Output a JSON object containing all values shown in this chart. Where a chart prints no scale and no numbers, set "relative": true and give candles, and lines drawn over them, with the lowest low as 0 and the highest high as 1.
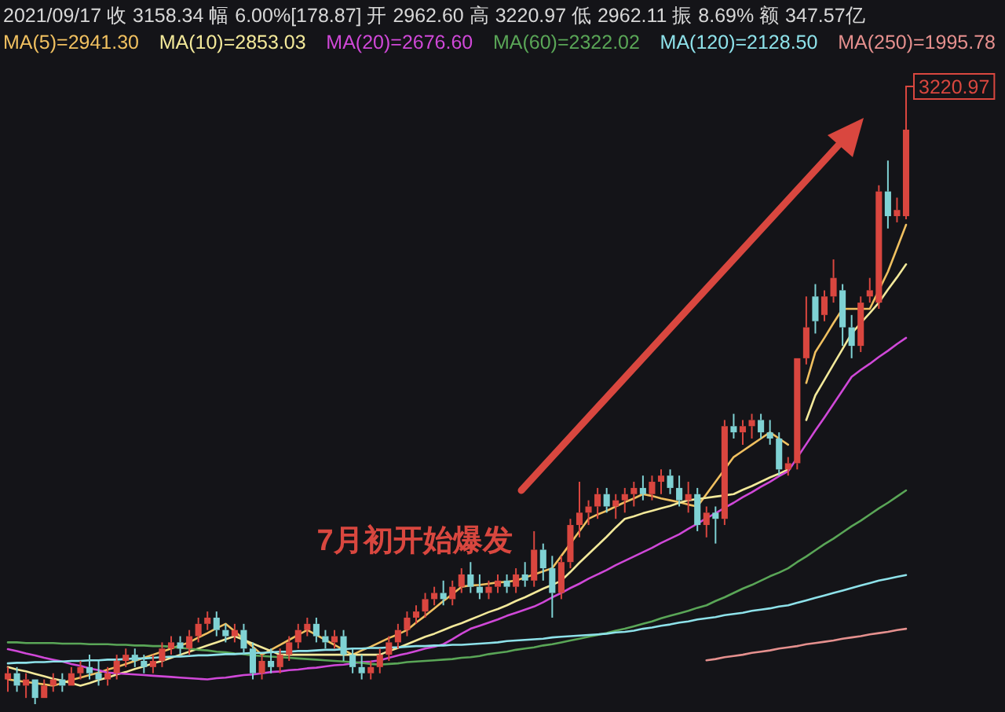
{
  "chart_data": {
    "type": "candlestick",
    "relative": true,
    "title": "2021/09/17 收 3158.34 幅 6.00%[178.87] 开 2962.60 高 3220.97 低 2962.11 振 8.69% 额 347.57亿",
    "annotations": [
      "7月初开始爆发",
      "3220.97"
    ],
    "categories": [
      null,
      null,
      null,
      null,
      null,
      null,
      null,
      null,
      null,
      null,
      null,
      null,
      null,
      null,
      null,
      null,
      null,
      null,
      null,
      null,
      null,
      null,
      null,
      null,
      null,
      null,
      null,
      null,
      null,
      null,
      null,
      null,
      null,
      null,
      null,
      null,
      null,
      null,
      null,
      null,
      null,
      null,
      null,
      null,
      null,
      null,
      null,
      null,
      null,
      null,
      null,
      null,
      null,
      null,
      null,
      null,
      null,
      null,
      null,
      null,
      null,
      null,
      null,
      null,
      null,
      null,
      null,
      null,
      null,
      null,
      null,
      null,
      null,
      null,
      null,
      null,
      null,
      null,
      null,
      null,
      null,
      null,
      null,
      null,
      null,
      null,
      null,
      null,
      null,
      null,
      null,
      null,
      null,
      null,
      null,
      null,
      null,
      null,
      null,
      null
    ],
    "ohlc": [
      [
        0.04,
        0.06,
        0.02,
        0.05
      ],
      [
        0.05,
        0.06,
        0.02,
        0.03
      ],
      [
        0.03,
        0.05,
        0.01,
        0.04
      ],
      [
        0.04,
        0.04,
        0,
        0.01
      ],
      [
        0.01,
        0.04,
        0.01,
        0.03
      ],
      [
        0.03,
        0.05,
        0.02,
        0.04
      ],
      [
        0.04,
        0.05,
        0.02,
        0.03
      ],
      [
        0.03,
        0.06,
        0.03,
        0.05
      ],
      [
        0.05,
        0.07,
        0.04,
        0.06
      ],
      [
        0.06,
        0.08,
        0.04,
        0.05
      ],
      [
        0.05,
        0.07,
        0.03,
        0.04
      ],
      [
        0.04,
        0.06,
        0.03,
        0.05
      ],
      [
        0.05,
        0.08,
        0.04,
        0.07
      ],
      [
        0.07,
        0.09,
        0.06,
        0.08
      ],
      [
        0.08,
        0.09,
        0.06,
        0.07
      ],
      [
        0.07,
        0.08,
        0.05,
        0.06
      ],
      [
        0.06,
        0.08,
        0.05,
        0.07
      ],
      [
        0.07,
        0.1,
        0.06,
        0.09
      ],
      [
        0.09,
        0.11,
        0.08,
        0.1
      ],
      [
        0.1,
        0.11,
        0.08,
        0.09
      ],
      [
        0.09,
        0.12,
        0.08,
        0.11
      ],
      [
        0.11,
        0.14,
        0.1,
        0.13
      ],
      [
        0.13,
        0.15,
        0.12,
        0.14
      ],
      [
        0.14,
        0.15,
        0.11,
        0.12
      ],
      [
        0.12,
        0.13,
        0.1,
        0.11
      ],
      [
        0.11,
        0.13,
        0.1,
        0.12
      ],
      [
        0.12,
        0.13,
        0.08,
        0.09
      ],
      [
        0.09,
        0.1,
        0.04,
        0.05
      ],
      [
        0.05,
        0.08,
        0.04,
        0.07
      ],
      [
        0.07,
        0.09,
        0.05,
        0.06
      ],
      [
        0.06,
        0.09,
        0.05,
        0.08
      ],
      [
        0.08,
        0.11,
        0.07,
        0.1
      ],
      [
        0.1,
        0.13,
        0.09,
        0.12
      ],
      [
        0.12,
        0.14,
        0.11,
        0.13
      ],
      [
        0.13,
        0.14,
        0.1,
        0.11
      ],
      [
        0.11,
        0.12,
        0.09,
        0.1
      ],
      [
        0.1,
        0.12,
        0.09,
        0.11
      ],
      [
        0.11,
        0.12,
        0.07,
        0.08
      ],
      [
        0.08,
        0.09,
        0.05,
        0.06
      ],
      [
        0.06,
        0.08,
        0.04,
        0.05
      ],
      [
        0.05,
        0.07,
        0.04,
        0.06
      ],
      [
        0.06,
        0.09,
        0.05,
        0.08
      ],
      [
        0.08,
        0.11,
        0.07,
        0.1
      ],
      [
        0.1,
        0.13,
        0.09,
        0.12
      ],
      [
        0.12,
        0.15,
        0.11,
        0.14
      ],
      [
        0.14,
        0.16,
        0.13,
        0.15
      ],
      [
        0.15,
        0.18,
        0.14,
        0.17
      ],
      [
        0.17,
        0.19,
        0.16,
        0.18
      ],
      [
        0.18,
        0.2,
        0.16,
        0.17
      ],
      [
        0.17,
        0.2,
        0.16,
        0.19
      ],
      [
        0.19,
        0.22,
        0.18,
        0.21
      ],
      [
        0.21,
        0.23,
        0.18,
        0.19
      ],
      [
        0.19,
        0.21,
        0.17,
        0.18
      ],
      [
        0.18,
        0.2,
        0.17,
        0.19
      ],
      [
        0.19,
        0.21,
        0.18,
        0.2
      ],
      [
        0.2,
        0.21,
        0.18,
        0.19
      ],
      [
        0.19,
        0.22,
        0.18,
        0.21
      ],
      [
        0.21,
        0.23,
        0.19,
        0.2
      ],
      [
        0.2,
        0.28,
        0.19,
        0.25
      ],
      [
        0.25,
        0.26,
        0.2,
        0.22
      ],
      [
        0.22,
        0.24,
        0.14,
        0.18
      ],
      [
        0.18,
        0.24,
        0.17,
        0.23
      ],
      [
        0.23,
        0.3,
        0.22,
        0.29
      ],
      [
        0.29,
        0.36,
        0.27,
        0.31
      ],
      [
        0.31,
        0.33,
        0.29,
        0.32
      ],
      [
        0.32,
        0.35,
        0.3,
        0.34
      ],
      [
        0.34,
        0.35,
        0.31,
        0.32
      ],
      [
        0.32,
        0.34,
        0.3,
        0.33
      ],
      [
        0.33,
        0.35,
        0.31,
        0.34
      ],
      [
        0.34,
        0.36,
        0.32,
        0.35
      ],
      [
        0.35,
        0.37,
        0.33,
        0.34
      ],
      [
        0.34,
        0.37,
        0.33,
        0.36
      ],
      [
        0.36,
        0.38,
        0.34,
        0.37
      ],
      [
        0.37,
        0.38,
        0.34,
        0.35
      ],
      [
        0.35,
        0.37,
        0.32,
        0.33
      ],
      [
        0.33,
        0.36,
        0.31,
        0.34
      ],
      [
        0.34,
        0.35,
        0.28,
        0.29
      ],
      [
        0.29,
        0.32,
        0.27,
        0.31
      ],
      [
        0.31,
        0.32,
        0.26,
        0.3
      ],
      [
        0.3,
        0.46,
        0.29,
        0.45
      ],
      [
        0.45,
        0.47,
        0.43,
        0.44
      ],
      [
        0.44,
        0.46,
        0.42,
        0.45
      ],
      [
        0.45,
        0.47,
        0.43,
        0.46
      ],
      [
        0.46,
        0.47,
        0.43,
        0.44
      ],
      [
        0.44,
        0.46,
        0.42,
        0.43
      ],
      [
        0.43,
        0.44,
        0.37,
        0.38
      ],
      [
        0.38,
        0.4,
        0.37,
        0.39
      ],
      [
        0.39,
        0.56,
        0.38,
        0.56
      ],
      [
        0.56,
        0.66,
        0.55,
        0.61
      ],
      [
        0.66,
        0.68,
        0.6,
        0.62
      ],
      [
        0.63,
        0.67,
        0.62,
        0.66
      ],
      [
        0.66,
        0.72,
        0.65,
        0.69
      ],
      [
        0.67,
        0.68,
        0.58,
        0.61
      ],
      [
        0.61,
        0.63,
        0.56,
        0.58
      ],
      [
        0.58,
        0.66,
        0.57,
        0.65
      ],
      [
        0.66,
        0.69,
        0.65,
        0.67
      ],
      [
        0.65,
        0.84,
        0.64,
        0.83
      ],
      [
        0.83,
        0.88,
        0.77,
        0.79
      ],
      [
        0.79,
        0.82,
        0.78,
        0.8
      ],
      [
        0.79,
        1,
        0.785,
        0.93
      ]
    ],
    "series": [
      {
        "type": "line",
        "name": "MA(5)=2941.30",
        "color": "#f0c060",
        "values": [
          0.04,
          0.038,
          0.036,
          0.034,
          0.032,
          0.03,
          0.034,
          0.039,
          0.043,
          0.047,
          0.051,
          0.056,
          0.06,
          0.065,
          0.07,
          0.075,
          0.08,
          0.085,
          0.09,
          0.095,
          0.1,
          0.108,
          0.115,
          0.123,
          0.13,
          0.118,
          0.105,
          0.093,
          0.08,
          0.088,
          0.096,
          0.104,
          0.112,
          0.12,
          0.112,
          0.104,
          0.096,
          0.088,
          0.08,
          0.087,
          0.093,
          0.1,
          0.107,
          0.113,
          0.12,
          0.132,
          0.143,
          0.155,
          0.167,
          0.178,
          0.19,
          0.192,
          0.193,
          0.195,
          0.197,
          0.198,
          0.2,
          0.205,
          0.21,
          0.215,
          0.22,
          0.24,
          0.26,
          0.28,
          0.3,
          0.307,
          0.313,
          0.32,
          0.327,
          0.333,
          0.34,
          0.337,
          0.333,
          0.33,
          0.327,
          0.323,
          0.32,
          0.34,
          0.36,
          0.38,
          0.4,
          0.41,
          0.42,
          0.43,
          0.44,
          0.43,
          0.42,
          null,
          0.52,
          0.57,
          0.593,
          0.617,
          0.64,
          0.64,
          0.64,
          0.64,
          0.67,
          0.7,
          0.738,
          0.776
        ]
      },
      {
        "type": "line",
        "name": "MA(10)=2853.03",
        "color": "#f3e99a",
        "values": [
          0.06,
          0.056,
          0.053,
          0.049,
          0.045,
          0.041,
          0.038,
          0.034,
          0.03,
          0.034,
          0.039,
          0.043,
          0.048,
          0.052,
          0.057,
          0.061,
          0.066,
          0.07,
          0.075,
          0.08,
          0.085,
          0.09,
          0.095,
          0.1,
          0.105,
          0.11,
          0.104,
          0.098,
          0.092,
          0.086,
          0.08,
          0.08,
          0.08,
          0.08,
          0.08,
          0.08,
          0.08,
          0.08,
          0.08,
          0.08,
          0.08,
          0.08,
          0.086,
          0.091,
          0.097,
          0.103,
          0.109,
          0.114,
          0.12,
          0.126,
          0.131,
          0.137,
          0.143,
          0.149,
          0.154,
          0.16,
          0.167,
          0.173,
          0.18,
          0.187,
          0.193,
          0.2,
          0.214,
          0.229,
          0.243,
          0.257,
          0.271,
          0.286,
          0.3,
          0.304,
          0.309,
          0.313,
          0.317,
          0.321,
          0.326,
          0.33,
          0.332,
          0.334,
          0.336,
          0.338,
          0.34,
          0.347,
          0.353,
          0.36,
          0.367,
          0.373,
          0.38,
          null,
          0.46,
          0.5,
          0.525,
          0.55,
          0.575,
          0.6,
          0.617,
          0.633,
          0.65,
          0.671,
          0.691,
          0.712
        ]
      },
      {
        "type": "line",
        "name": "MA(20)=2676.60",
        "color": "#d048d8",
        "values": [
          0.089,
          0.086,
          0.082,
          0.079,
          0.075,
          0.072,
          0.069,
          0.065,
          0.062,
          0.058,
          0.055,
          0.051,
          0.05,
          0.049,
          0.048,
          0.047,
          0.046,
          0.045,
          0.044,
          0.043,
          0.042,
          0.041,
          0.04,
          0.042,
          0.043,
          0.045,
          0.047,
          0.048,
          0.05,
          0.052,
          0.053,
          0.055,
          0.056,
          0.058,
          0.059,
          0.061,
          0.063,
          0.064,
          0.066,
          0.068,
          0.069,
          0.071,
          0.075,
          0.079,
          0.082,
          0.086,
          0.09,
          0.093,
          0.097,
          0.105,
          0.114,
          0.122,
          0.127,
          0.132,
          0.137,
          0.143,
          0.148,
          0.153,
          0.158,
          0.165,
          0.173,
          0.18,
          0.188,
          0.195,
          0.203,
          0.21,
          0.217,
          0.225,
          0.232,
          0.239,
          0.246,
          0.253,
          0.261,
          0.268,
          0.275,
          0.284,
          0.292,
          0.301,
          0.309,
          0.318,
          0.326,
          0.335,
          0.343,
          0.352,
          0.36,
          0.369,
          0.377,
          0.399,
          0.421,
          0.443,
          0.464,
          0.486,
          0.508,
          0.53,
          0.541,
          0.551,
          0.562,
          0.572,
          0.583,
          0.593
        ]
      },
      {
        "type": "line",
        "name": "MA(60)=2322.02",
        "color": "#5aa657",
        "values": [
          0.1,
          0.1,
          0.099,
          0.099,
          0.099,
          0.099,
          0.098,
          0.098,
          0.098,
          0.097,
          0.097,
          0.097,
          0.096,
          0.096,
          0.095,
          0.095,
          0.094,
          0.094,
          0.093,
          0.091,
          0.09,
          0.088,
          0.087,
          0.085,
          0.084,
          0.082,
          0.081,
          0.079,
          0.078,
          0.077,
          0.076,
          0.075,
          0.074,
          0.073,
          0.072,
          0.071,
          0.07,
          0.069,
          0.068,
          0.067,
          0.065,
          0.064,
          0.065,
          0.066,
          0.068,
          0.069,
          0.07,
          0.071,
          0.072,
          0.073,
          0.075,
          0.076,
          0.078,
          0.081,
          0.083,
          0.085,
          0.088,
          0.09,
          0.092,
          0.095,
          0.097,
          0.1,
          0.103,
          0.106,
          0.109,
          0.112,
          0.115,
          0.119,
          0.122,
          0.126,
          0.13,
          0.134,
          0.139,
          0.143,
          0.147,
          0.151,
          0.156,
          0.16,
          0.167,
          0.173,
          0.18,
          0.187,
          0.193,
          0.2,
          0.207,
          0.213,
          0.22,
          0.23,
          0.239,
          0.249,
          0.259,
          0.268,
          0.278,
          0.288,
          0.297,
          0.307,
          0.317,
          0.326,
          0.336,
          0.346
        ]
      },
      {
        "type": "line",
        "name": "MA(120)=2128.50",
        "color": "#8ee2ea",
        "values": [
          0.066,
          0.067,
          0.067,
          0.068,
          0.068,
          0.069,
          0.069,
          0.07,
          0.07,
          0.071,
          0.071,
          0.072,
          0.072,
          0.073,
          0.074,
          0.074,
          0.075,
          0.076,
          0.077,
          0.077,
          0.078,
          0.079,
          0.079,
          0.08,
          0.081,
          0.081,
          0.082,
          0.083,
          0.083,
          0.084,
          0.085,
          0.085,
          0.086,
          0.086,
          0.087,
          0.088,
          0.088,
          0.089,
          0.09,
          0.09,
          0.091,
          0.091,
          0.092,
          0.092,
          0.093,
          0.094,
          0.094,
          0.095,
          0.095,
          0.096,
          0.096,
          0.097,
          0.098,
          0.099,
          0.1,
          0.102,
          0.103,
          0.104,
          0.105,
          0.106,
          0.108,
          0.109,
          0.11,
          0.111,
          0.112,
          0.113,
          0.114,
          0.116,
          0.117,
          0.119,
          0.122,
          0.124,
          0.127,
          0.129,
          0.132,
          0.134,
          0.137,
          0.139,
          0.141,
          0.144,
          0.146,
          0.148,
          0.151,
          0.153,
          0.155,
          0.158,
          0.16,
          0.164,
          0.168,
          0.172,
          0.176,
          0.18,
          0.184,
          0.188,
          0.192,
          0.196,
          0.2,
          0.203,
          0.206,
          0.209
        ]
      },
      {
        "type": "line",
        "name": "MA(250)=1995.78",
        "color": "#e5908e",
        "values": [
          null,
          null,
          null,
          null,
          null,
          null,
          null,
          null,
          null,
          null,
          null,
          null,
          null,
          null,
          null,
          null,
          null,
          null,
          null,
          null,
          null,
          null,
          null,
          null,
          null,
          null,
          null,
          null,
          null,
          null,
          null,
          null,
          null,
          null,
          null,
          null,
          null,
          null,
          null,
          null,
          null,
          null,
          null,
          null,
          null,
          null,
          null,
          null,
          null,
          null,
          null,
          null,
          null,
          null,
          null,
          null,
          null,
          null,
          null,
          null,
          null,
          null,
          null,
          null,
          null,
          null,
          null,
          null,
          null,
          null,
          null,
          null,
          null,
          null,
          null,
          null,
          null,
          0.071,
          0.073,
          0.076,
          0.078,
          0.08,
          0.083,
          0.085,
          0.087,
          0.09,
          0.092,
          0.094,
          0.097,
          0.099,
          0.101,
          0.103,
          0.106,
          0.108,
          0.11,
          0.113,
          0.115,
          0.117,
          0.12,
          0.122
        ]
      }
    ]
  }
}
